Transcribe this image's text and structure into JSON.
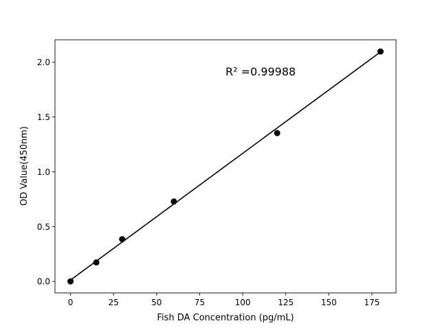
{
  "chart_data": {
    "type": "scatter",
    "title": "",
    "xlabel": "Fish DA Concentration (pg/mL)",
    "ylabel": "OD Value(450nm)",
    "xlim": [
      -9,
      189
    ],
    "ylim": [
      -0.105,
      2.205
    ],
    "xticks": [
      0,
      25,
      50,
      75,
      100,
      125,
      150,
      175
    ],
    "yticks": [
      0.0,
      0.5,
      1.0,
      1.5,
      2.0
    ],
    "xtick_labels": [
      "0",
      "25",
      "50",
      "75",
      "100",
      "125",
      "150",
      "175"
    ],
    "ytick_labels": [
      "0.0",
      "0.5",
      "1.0",
      "1.5",
      "2.0"
    ],
    "grid": false,
    "points": {
      "x": [
        0,
        15,
        30,
        60,
        120,
        180
      ],
      "y": [
        0.0,
        0.173,
        0.385,
        0.729,
        1.354,
        2.098
      ],
      "color": "#000000"
    },
    "fit_line": {
      "x": [
        0,
        180
      ],
      "y": [
        0.012,
        2.094
      ],
      "color": "#000000"
    },
    "annotation": {
      "text": "R² =0.99988",
      "x": 90,
      "y": 1.88
    }
  }
}
